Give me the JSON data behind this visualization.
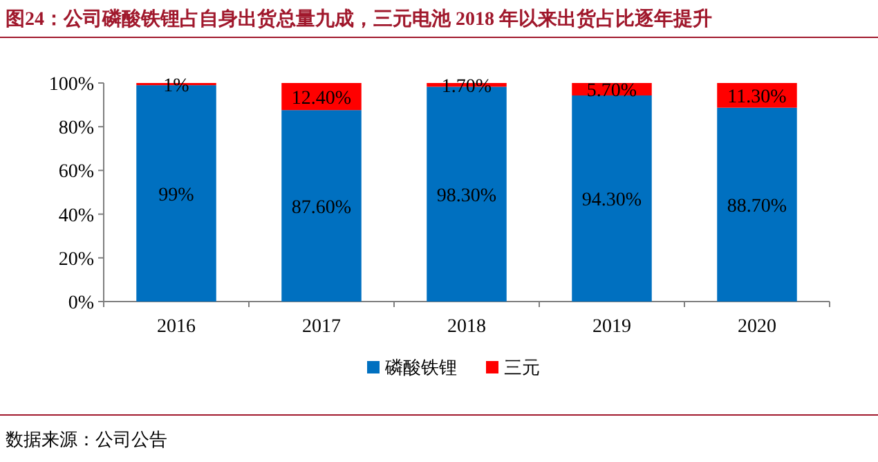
{
  "chart_data": {
    "type": "bar",
    "title": "图24：公司磷酸铁锂占自身出货总量九成，三元电池 2018 年以来出货占比逐年提升",
    "categories": [
      "2016",
      "2017",
      "2018",
      "2019",
      "2020"
    ],
    "series": [
      {
        "name": "磷酸铁锂",
        "color": "#0070c0",
        "values": [
          99,
          87.6,
          98.3,
          94.3,
          88.7
        ],
        "value_labels": [
          "99%",
          "87.60%",
          "98.30%",
          "94.30%",
          "88.70%"
        ]
      },
      {
        "name": "三元",
        "color": "#ff0000",
        "values": [
          1,
          12.4,
          1.7,
          5.7,
          11.3
        ],
        "value_labels": [
          "1%",
          "12.40%",
          "1.70%",
          "5.70%",
          "11.30%"
        ]
      }
    ],
    "stacked": true,
    "ylim": [
      0,
      100
    ],
    "yticks": [
      {
        "value": 0,
        "label": "0%"
      },
      {
        "value": 20,
        "label": "20%"
      },
      {
        "value": 40,
        "label": "40%"
      },
      {
        "value": 60,
        "label": "60%"
      },
      {
        "value": 80,
        "label": "80%"
      },
      {
        "value": 100,
        "label": "100%"
      }
    ],
    "legend": "bottom",
    "annotations": [
      "数据来源：公司公告"
    ]
  }
}
